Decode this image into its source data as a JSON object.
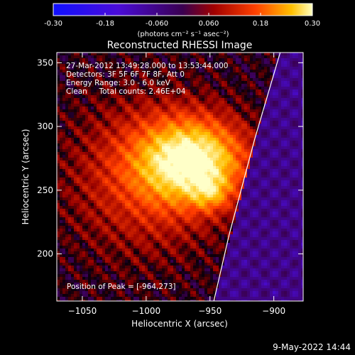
{
  "chart_data": {
    "type": "heatmap",
    "title": "Reconstructed RHESSI Image",
    "xlabel": "Heliocentric X (arcsec)",
    "ylabel": "Heliocentric Y (arcsec)",
    "xlim": [
      -1070,
      -877
    ],
    "ylim": [
      163,
      358
    ],
    "xticks": [
      -1050,
      -1000,
      -950,
      -900
    ],
    "yticks": [
      200,
      250,
      300,
      350
    ],
    "colorbar": {
      "min": -0.3,
      "max": 0.3,
      "ticks": [
        "-0.30",
        "-0.18",
        "-0.060",
        "0.060",
        "0.18",
        "0.30"
      ],
      "unit_label": "(photons cm⁻² s⁻¹ asec⁻²)"
    },
    "info_lines": [
      "27-Mar-2012 13:49:28.000 to 13:53:44.000",
      "Detectors: 3F 5F 6F 7F 8F, Att 0",
      "Energy Range: 3.0 - 6.0 keV",
      "Clean     Total counts: 2.46E+04"
    ],
    "peak_label": "Position of Peak = [-964,273]",
    "peak": {
      "x": -964,
      "y": 273,
      "value": 0.3
    },
    "sources": [
      {
        "x": -964,
        "y": 273,
        "sx": 28,
        "sy": 22,
        "amp": 0.29
      },
      {
        "x": -950,
        "y": 248,
        "sx": 10,
        "sy": 9,
        "amp": 0.1
      },
      {
        "x": -1000,
        "y": 260,
        "sx": 40,
        "sy": 40,
        "amp": 0.1
      }
    ],
    "limb": [
      {
        "x": -947,
        "y": 163
      },
      {
        "x": -935,
        "y": 215
      },
      {
        "x": -915,
        "y": 290
      },
      {
        "x": -895,
        "y": 358
      }
    ]
  },
  "footer": {
    "date": "9-May-2022 14:44"
  }
}
